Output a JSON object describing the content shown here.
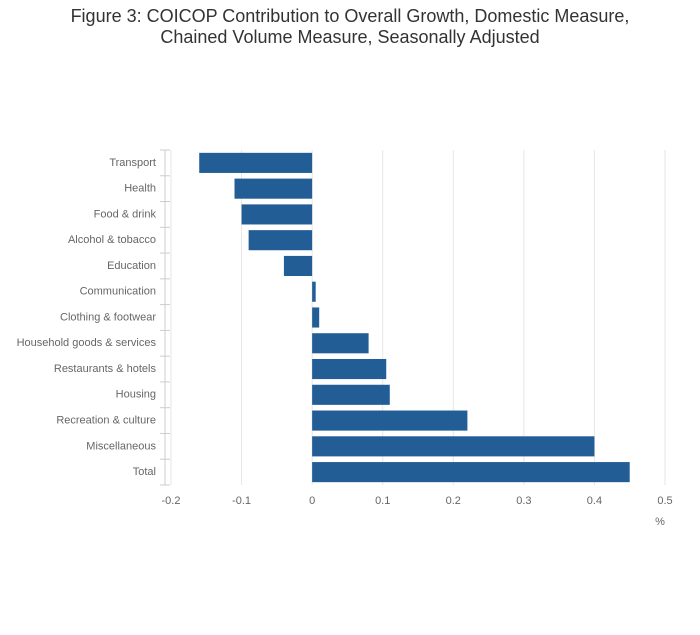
{
  "chart_data": {
    "type": "barh",
    "title": "Figure 3: COICOP Contribution to Overall Growth, Domestic Measure, Chained Volume Measure, Seasonally Adjusted",
    "categories": [
      "Transport",
      "Health",
      "Food & drink",
      "Alcohol & tobacco",
      "Education",
      "Communication",
      "Clothing & footwear",
      "Household goods & services",
      "Restaurants & hotels",
      "Housing",
      "Recreation & culture",
      "Miscellaneous",
      "Total"
    ],
    "values": [
      -0.16,
      -0.11,
      -0.1,
      -0.09,
      -0.04,
      0.005,
      0.01,
      0.08,
      0.105,
      0.11,
      0.22,
      0.4,
      0.45
    ],
    "color": "#225e95",
    "xlabel": "%",
    "xlim": [
      -0.2,
      0.5
    ],
    "xticks": [
      -0.2,
      -0.1,
      0,
      0.1,
      0.2,
      0.3,
      0.4,
      0.5
    ],
    "grid": true
  }
}
